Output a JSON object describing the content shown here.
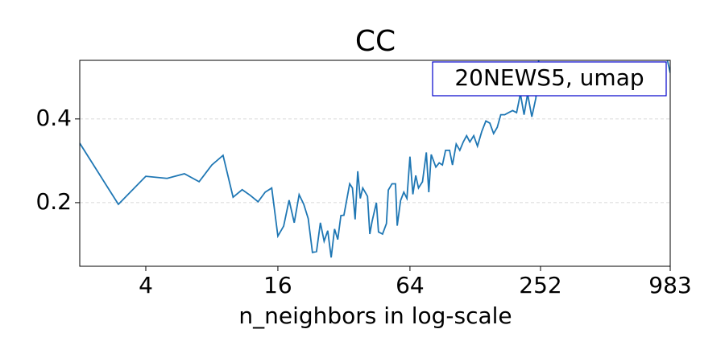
{
  "chart_data": {
    "type": "line",
    "title": "CC",
    "xlabel": "n_neighbors in log-scale",
    "annotation": "20NEWS5, umap",
    "xscale": "log",
    "grid": true,
    "color": "#1f77b4",
    "xlim": [
      2,
      983
    ],
    "xticks": [
      4,
      16,
      64,
      252,
      983
    ],
    "ylim": [
      0.048,
      0.54
    ],
    "yticks": [
      0.2,
      0.4
    ],
    "x": [
      2,
      3,
      4,
      5,
      6,
      7,
      8,
      9,
      10,
      11,
      12,
      13,
      14,
      15,
      16,
      17,
      18,
      19,
      20,
      21,
      22,
      23,
      24,
      25,
      26,
      27,
      28,
      29,
      30,
      31,
      32,
      34,
      35,
      36,
      37,
      38,
      39,
      40,
      41,
      42,
      43,
      45,
      46,
      48,
      50,
      51,
      53,
      55,
      56,
      58,
      60,
      62,
      64,
      66,
      68,
      70,
      73,
      76,
      78,
      80,
      84,
      87,
      90,
      93,
      97,
      100,
      104,
      108,
      112,
      116,
      120,
      125,
      130,
      136,
      142,
      148,
      154,
      160,
      166,
      173,
      180,
      188,
      196,
      204,
      212,
      220,
      230,
      240,
      252,
      900,
      983
    ],
    "values": [
      0.342,
      0.196,
      0.263,
      0.258,
      0.269,
      0.25,
      0.29,
      0.313,
      0.213,
      0.231,
      0.217,
      0.202,
      0.225,
      0.235,
      0.12,
      0.144,
      0.206,
      0.152,
      0.219,
      0.196,
      0.162,
      0.081,
      0.083,
      0.152,
      0.108,
      0.133,
      0.069,
      0.137,
      0.112,
      0.169,
      0.17,
      0.245,
      0.235,
      0.16,
      0.275,
      0.21,
      0.235,
      0.225,
      0.215,
      0.125,
      0.155,
      0.2,
      0.13,
      0.125,
      0.15,
      0.23,
      0.245,
      0.245,
      0.145,
      0.205,
      0.225,
      0.21,
      0.31,
      0.22,
      0.265,
      0.235,
      0.25,
      0.32,
      0.225,
      0.315,
      0.285,
      0.295,
      0.29,
      0.325,
      0.325,
      0.29,
      0.34,
      0.325,
      0.345,
      0.36,
      0.345,
      0.36,
      0.335,
      0.37,
      0.395,
      0.39,
      0.365,
      0.38,
      0.41,
      0.41,
      0.415,
      0.42,
      0.415,
      0.46,
      0.41,
      0.46,
      0.405,
      0.45,
      0.6,
      0.6,
      0.51
    ]
  }
}
